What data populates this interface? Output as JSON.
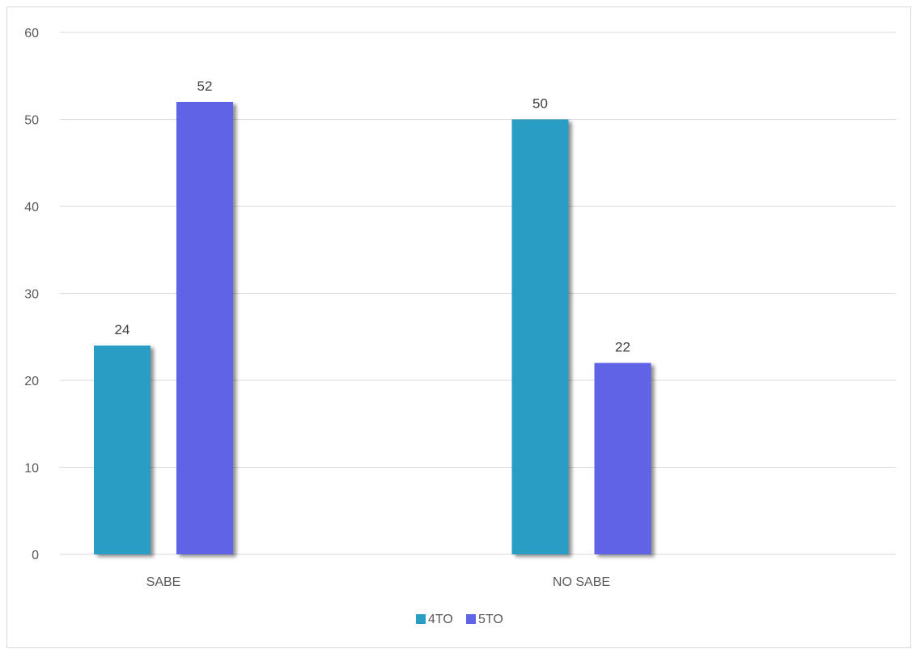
{
  "chart_data": {
    "type": "bar",
    "title": "",
    "xlabel": "",
    "ylabel": "",
    "categories": [
      "SABE",
      "NO SABE"
    ],
    "series": [
      {
        "name": "4TO",
        "values": [
          24,
          50
        ],
        "color": "#2a9dc4"
      },
      {
        "name": "5TO",
        "values": [
          52,
          22
        ],
        "color": "#6064e6"
      }
    ],
    "ylim": [
      0,
      60
    ],
    "yticks": [
      0,
      10,
      20,
      30,
      40,
      50,
      60
    ],
    "grid": true,
    "data_labels": true,
    "legend_position": "bottom",
    "colors": {
      "grid": "#d9d9d9",
      "text": "#595959"
    }
  }
}
